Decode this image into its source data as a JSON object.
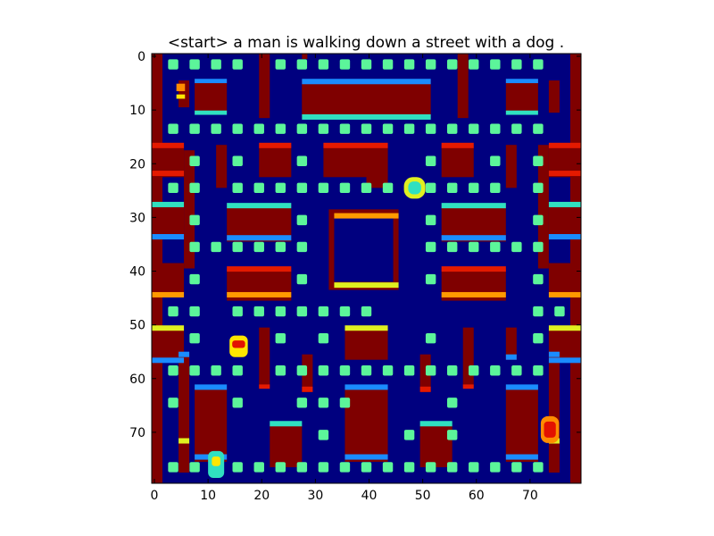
{
  "figure": {
    "title": "<start> a man is walking down a street with a dog .",
    "colormap": "jet",
    "image_size": [
      80,
      80
    ],
    "palette": {
      "background": "#00007f",
      "wall": "#7f0000",
      "wall_edge_red": "#e41a00",
      "edge_orange": "#ff9a00",
      "edge_yellow": "#e0f020",
      "edge_cyan": "#30e0c0",
      "edge_blue": "#1a8cff",
      "pellet": "#5cf59a",
      "pellet_core": "#39f5d0",
      "hot_red": "#e31200",
      "hot_orange": "#ff8c00",
      "hot_yellow": "#ffe600"
    }
  },
  "chart_data": {
    "type": "heatmap",
    "title": "<start> a man is walking down a street with a dog .",
    "xlabel": "",
    "ylabel": "",
    "xlim": [
      0,
      80
    ],
    "ylim": [
      80,
      0
    ],
    "x_ticks": [
      "0",
      "10",
      "20",
      "30",
      "40",
      "50",
      "60",
      "70"
    ],
    "y_ticks": [
      "0",
      "10",
      "20",
      "30",
      "40",
      "50",
      "60",
      "70"
    ],
    "colormap": "jet",
    "grid": false
  }
}
